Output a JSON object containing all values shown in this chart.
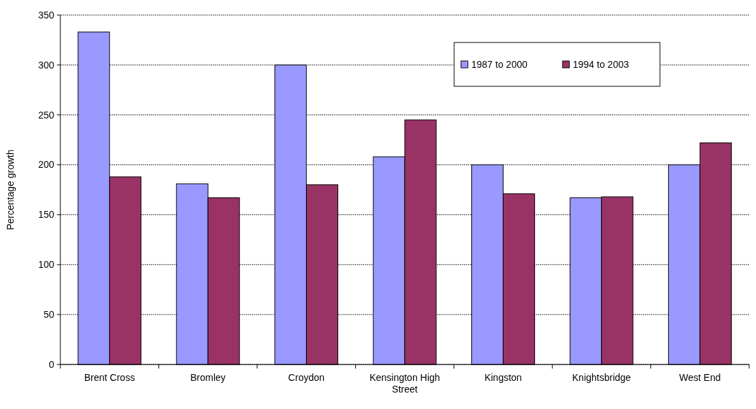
{
  "chart_data": {
    "type": "bar",
    "ylabel": "Percentage growth",
    "categories": [
      "Brent Cross",
      "Bromley",
      "Croydon",
      "Kensington High Street",
      "Kingston",
      "Knightsbridge",
      "West End"
    ],
    "series": [
      {
        "name": "1987 to 2000",
        "color": "#9999ff",
        "values": [
          333,
          181,
          300,
          208,
          200,
          167,
          200
        ]
      },
      {
        "name": "1994 to 2003",
        "color": "#993366",
        "values": [
          188,
          167,
          180,
          245,
          171,
          168,
          222
        ]
      }
    ],
    "ylim": [
      0,
      350
    ],
    "yticks": [
      0,
      50,
      100,
      150,
      200,
      250,
      300,
      350
    ],
    "grid": "y",
    "legend": "top right"
  }
}
